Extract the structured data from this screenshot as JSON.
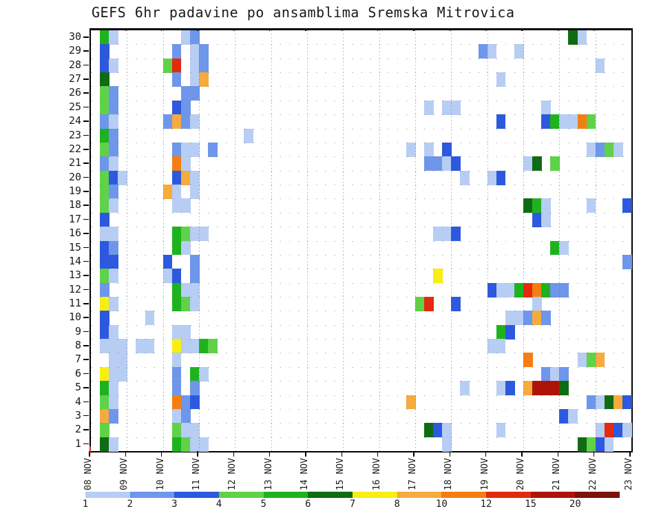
{
  "title": "GEFS 6hr padavine po ansamblima Sremska Mitrovica",
  "chart_data": {
    "type": "heatmap",
    "title": "GEFS 6hr padavine po ansamblima Sremska Mitrovica",
    "xlabel": "",
    "ylabel": "",
    "x_axis": {
      "labels": [
        "08 NOV",
        "09 NOV",
        "10 NOV",
        "11 NOV",
        "12 NOV",
        "13 NOV",
        "14 NOV",
        "15 NOV",
        "16 NOV",
        "17 NOV",
        "18 NOV",
        "19 NOV",
        "20 NOV",
        "21 NOV",
        "22 NOV",
        "23 NOV"
      ],
      "periods_per_day": 4,
      "total_columns": 60
    },
    "y_axis": {
      "members": [
        1,
        2,
        3,
        4,
        5,
        6,
        7,
        8,
        9,
        10,
        11,
        12,
        13,
        14,
        15,
        16,
        17,
        18,
        19,
        20,
        21,
        22,
        23,
        24,
        25,
        26,
        27,
        28,
        29,
        30
      ]
    },
    "legend": {
      "values": [
        1,
        2,
        3,
        4,
        5,
        6,
        7,
        8,
        10,
        12,
        15,
        20
      ],
      "colors": [
        "#b7cdf3",
        "#6e96ea",
        "#2c59de",
        "#5fd248",
        "#1eb31e",
        "#0f6c12",
        "#f8ee12",
        "#f5ab3d",
        "#f57e12",
        "#e3290e",
        "#ad1309",
        "#7c1209"
      ],
      "position": "bottom"
    },
    "grid": "dotted",
    "cells_format": "[member, column_index, precip_level]",
    "cells": [
      [
        30,
        1,
        5
      ],
      [
        30,
        2,
        1
      ],
      [
        30,
        10,
        1
      ],
      [
        30,
        11,
        2
      ],
      [
        30,
        53,
        6
      ],
      [
        30,
        54,
        1
      ],
      [
        29,
        1,
        3
      ],
      [
        29,
        9,
        2
      ],
      [
        29,
        11,
        1
      ],
      [
        29,
        12,
        2
      ],
      [
        29,
        43,
        2
      ],
      [
        29,
        44,
        1
      ],
      [
        29,
        47,
        1
      ],
      [
        28,
        1,
        3
      ],
      [
        28,
        2,
        1
      ],
      [
        28,
        8,
        4
      ],
      [
        28,
        9,
        12
      ],
      [
        28,
        11,
        1
      ],
      [
        28,
        12,
        2
      ],
      [
        28,
        56,
        1
      ],
      [
        27,
        1,
        6
      ],
      [
        27,
        9,
        2
      ],
      [
        27,
        11,
        1
      ],
      [
        27,
        12,
        8
      ],
      [
        27,
        45,
        1
      ],
      [
        26,
        1,
        4
      ],
      [
        26,
        2,
        2
      ],
      [
        26,
        10,
        2
      ],
      [
        26,
        11,
        2
      ],
      [
        25,
        1,
        4
      ],
      [
        25,
        2,
        2
      ],
      [
        25,
        9,
        3
      ],
      [
        25,
        10,
        2
      ],
      [
        25,
        37,
        1
      ],
      [
        25,
        39,
        1
      ],
      [
        25,
        40,
        1
      ],
      [
        25,
        50,
        1
      ],
      [
        24,
        1,
        2
      ],
      [
        24,
        2,
        1
      ],
      [
        24,
        8,
        2
      ],
      [
        24,
        9,
        8
      ],
      [
        24,
        10,
        2
      ],
      [
        24,
        11,
        1
      ],
      [
        24,
        45,
        3
      ],
      [
        24,
        50,
        3
      ],
      [
        24,
        51,
        5
      ],
      [
        24,
        52,
        1
      ],
      [
        24,
        53,
        1
      ],
      [
        24,
        54,
        10
      ],
      [
        24,
        55,
        4
      ],
      [
        23,
        1,
        5
      ],
      [
        23,
        2,
        2
      ],
      [
        23,
        17,
        1
      ],
      [
        22,
        1,
        4
      ],
      [
        22,
        2,
        2
      ],
      [
        22,
        9,
        2
      ],
      [
        22,
        10,
        1
      ],
      [
        22,
        11,
        1
      ],
      [
        22,
        13,
        2
      ],
      [
        22,
        35,
        1
      ],
      [
        22,
        37,
        1
      ],
      [
        22,
        39,
        3
      ],
      [
        22,
        55,
        1
      ],
      [
        22,
        56,
        2
      ],
      [
        22,
        57,
        4
      ],
      [
        22,
        58,
        1
      ],
      [
        21,
        1,
        2
      ],
      [
        21,
        2,
        1
      ],
      [
        21,
        9,
        10
      ],
      [
        21,
        10,
        1
      ],
      [
        21,
        37,
        2
      ],
      [
        21,
        38,
        2
      ],
      [
        21,
        39,
        1
      ],
      [
        21,
        40,
        3
      ],
      [
        21,
        48,
        1
      ],
      [
        21,
        49,
        6
      ],
      [
        21,
        51,
        4
      ],
      [
        20,
        1,
        4
      ],
      [
        20,
        2,
        3
      ],
      [
        20,
        3,
        1
      ],
      [
        20,
        9,
        3
      ],
      [
        20,
        10,
        8
      ],
      [
        20,
        11,
        1
      ],
      [
        20,
        41,
        1
      ],
      [
        20,
        44,
        1
      ],
      [
        20,
        45,
        3
      ],
      [
        19,
        1,
        4
      ],
      [
        19,
        2,
        2
      ],
      [
        19,
        8,
        8
      ],
      [
        19,
        9,
        1
      ],
      [
        19,
        11,
        1
      ],
      [
        18,
        1,
        4
      ],
      [
        18,
        2,
        1
      ],
      [
        18,
        9,
        1
      ],
      [
        18,
        10,
        1
      ],
      [
        18,
        48,
        6
      ],
      [
        18,
        49,
        5
      ],
      [
        18,
        50,
        1
      ],
      [
        18,
        55,
        1
      ],
      [
        18,
        59,
        3
      ],
      [
        17,
        1,
        3
      ],
      [
        17,
        49,
        3
      ],
      [
        17,
        50,
        1
      ],
      [
        16,
        1,
        1
      ],
      [
        16,
        2,
        1
      ],
      [
        16,
        9,
        5
      ],
      [
        16,
        10,
        4
      ],
      [
        16,
        11,
        1
      ],
      [
        16,
        12,
        1
      ],
      [
        16,
        38,
        1
      ],
      [
        16,
        39,
        1
      ],
      [
        16,
        40,
        3
      ],
      [
        15,
        1,
        3
      ],
      [
        15,
        2,
        2
      ],
      [
        15,
        9,
        5
      ],
      [
        15,
        10,
        1
      ],
      [
        15,
        51,
        5
      ],
      [
        15,
        52,
        1
      ],
      [
        14,
        1,
        3
      ],
      [
        14,
        2,
        3
      ],
      [
        14,
        8,
        3
      ],
      [
        14,
        11,
        2
      ],
      [
        14,
        59,
        2
      ],
      [
        13,
        1,
        4
      ],
      [
        13,
        2,
        1
      ],
      [
        13,
        8,
        1
      ],
      [
        13,
        9,
        3
      ],
      [
        13,
        11,
        2
      ],
      [
        13,
        38,
        7
      ],
      [
        12,
        1,
        2
      ],
      [
        12,
        9,
        5
      ],
      [
        12,
        10,
        1
      ],
      [
        12,
        11,
        1
      ],
      [
        12,
        44,
        3
      ],
      [
        12,
        45,
        1
      ],
      [
        12,
        46,
        1
      ],
      [
        12,
        47,
        5
      ],
      [
        12,
        48,
        12
      ],
      [
        12,
        49,
        10
      ],
      [
        12,
        50,
        5
      ],
      [
        12,
        51,
        2
      ],
      [
        12,
        52,
        2
      ],
      [
        11,
        1,
        7
      ],
      [
        11,
        2,
        1
      ],
      [
        11,
        9,
        5
      ],
      [
        11,
        10,
        4
      ],
      [
        11,
        11,
        1
      ],
      [
        11,
        36,
        4
      ],
      [
        11,
        37,
        12
      ],
      [
        11,
        40,
        3
      ],
      [
        11,
        49,
        1
      ],
      [
        10,
        1,
        3
      ],
      [
        10,
        6,
        1
      ],
      [
        10,
        46,
        1
      ],
      [
        10,
        47,
        1
      ],
      [
        10,
        48,
        2
      ],
      [
        10,
        49,
        8
      ],
      [
        10,
        50,
        2
      ],
      [
        9,
        1,
        3
      ],
      [
        9,
        2,
        1
      ],
      [
        9,
        9,
        1
      ],
      [
        9,
        10,
        1
      ],
      [
        9,
        45,
        5
      ],
      [
        9,
        46,
        3
      ],
      [
        8,
        1,
        1
      ],
      [
        8,
        2,
        1
      ],
      [
        8,
        3,
        1
      ],
      [
        8,
        5,
        1
      ],
      [
        8,
        6,
        1
      ],
      [
        8,
        9,
        7
      ],
      [
        8,
        10,
        1
      ],
      [
        8,
        11,
        1
      ],
      [
        8,
        12,
        5
      ],
      [
        8,
        13,
        4
      ],
      [
        8,
        44,
        1
      ],
      [
        8,
        45,
        1
      ],
      [
        7,
        2,
        1
      ],
      [
        7,
        3,
        1
      ],
      [
        7,
        9,
        1
      ],
      [
        7,
        48,
        10
      ],
      [
        7,
        54,
        1
      ],
      [
        7,
        55,
        4
      ],
      [
        7,
        56,
        8
      ],
      [
        6,
        1,
        7
      ],
      [
        6,
        2,
        1
      ],
      [
        6,
        3,
        1
      ],
      [
        6,
        9,
        2
      ],
      [
        6,
        11,
        5
      ],
      [
        6,
        12,
        1
      ],
      [
        6,
        50,
        2
      ],
      [
        6,
        51,
        1
      ],
      [
        6,
        52,
        2
      ],
      [
        5,
        1,
        5
      ],
      [
        5,
        2,
        1
      ],
      [
        5,
        9,
        2
      ],
      [
        5,
        11,
        2
      ],
      [
        5,
        41,
        1
      ],
      [
        5,
        45,
        1
      ],
      [
        5,
        46,
        3
      ],
      [
        5,
        48,
        8
      ],
      [
        5,
        49,
        15
      ],
      [
        5,
        50,
        15
      ],
      [
        5,
        51,
        15
      ],
      [
        5,
        52,
        6
      ],
      [
        4,
        1,
        4
      ],
      [
        4,
        2,
        1
      ],
      [
        4,
        9,
        10
      ],
      [
        4,
        10,
        2
      ],
      [
        4,
        11,
        3
      ],
      [
        4,
        35,
        8
      ],
      [
        4,
        55,
        2
      ],
      [
        4,
        56,
        1
      ],
      [
        4,
        57,
        6
      ],
      [
        4,
        58,
        8
      ],
      [
        4,
        59,
        3
      ],
      [
        3,
        1,
        8
      ],
      [
        3,
        2,
        2
      ],
      [
        3,
        9,
        1
      ],
      [
        3,
        10,
        2
      ],
      [
        3,
        52,
        3
      ],
      [
        3,
        53,
        1
      ],
      [
        2,
        1,
        4
      ],
      [
        2,
        9,
        4
      ],
      [
        2,
        10,
        1
      ],
      [
        2,
        11,
        1
      ],
      [
        2,
        37,
        6
      ],
      [
        2,
        38,
        3
      ],
      [
        2,
        39,
        1
      ],
      [
        2,
        45,
        1
      ],
      [
        2,
        56,
        1
      ],
      [
        2,
        57,
        12
      ],
      [
        2,
        58,
        3
      ],
      [
        2,
        59,
        1
      ],
      [
        1,
        1,
        6
      ],
      [
        1,
        2,
        1
      ],
      [
        1,
        9,
        5
      ],
      [
        1,
        10,
        4
      ],
      [
        1,
        11,
        1
      ],
      [
        1,
        12,
        1
      ],
      [
        1,
        39,
        1
      ],
      [
        1,
        54,
        6
      ],
      [
        1,
        55,
        4
      ],
      [
        1,
        56,
        3
      ],
      [
        1,
        57,
        1
      ]
    ]
  },
  "colors": {
    "axis": "#000000",
    "grid_dots": "#666666",
    "background": "#ffffff",
    "origin_tick": "#c03028"
  }
}
